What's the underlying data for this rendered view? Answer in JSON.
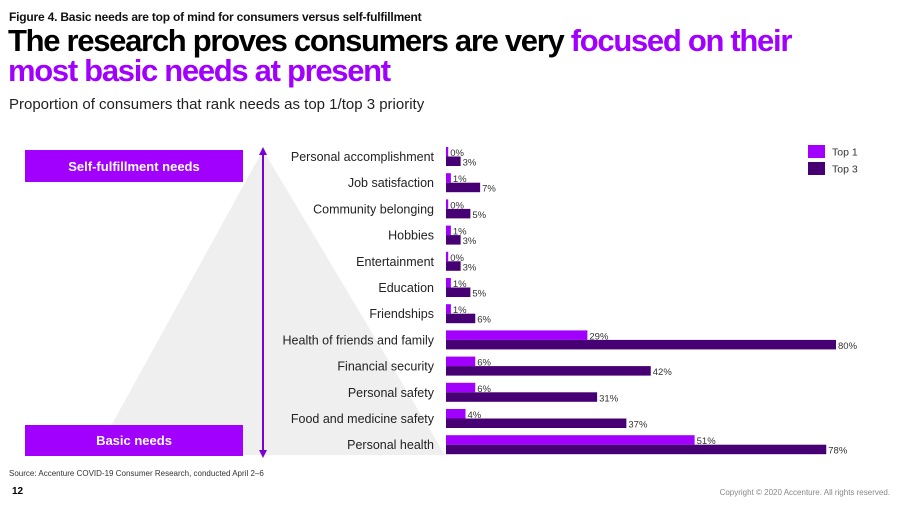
{
  "figure_label": "Figure 4. Basic needs are top of mind for consumers versus self-fulfillment",
  "headline": {
    "part1": "The research proves consumers are very ",
    "part2_highlight": "focused on their",
    "line2_highlight": "most basic needs at present"
  },
  "subtitle": "Proportion of consumers that rank needs as top 1/top 3 priority",
  "pyramid": {
    "top_label": "Self-fulfillment needs",
    "bottom_label": "Basic needs"
  },
  "colors": {
    "top1": "#a100ff",
    "top3": "#460073",
    "pyramid_fill": "#efefef",
    "arrow": "#7b00d4"
  },
  "chart_data": {
    "type": "bar",
    "orientation": "horizontal",
    "title": "Proportion of consumers that rank needs as top 1/top 3 priority",
    "categories": [
      "Personal accomplishment",
      "Job satisfaction",
      "Community belonging",
      "Hobbies",
      "Entertainment",
      "Education",
      "Friendships",
      "Health of friends and family",
      "Financial security",
      "Personal safety",
      "Food and medicine safety",
      "Personal health"
    ],
    "series": [
      {
        "name": "Top 1",
        "values": [
          0,
          1,
          0,
          1,
          0,
          1,
          1,
          29,
          6,
          6,
          4,
          51
        ]
      },
      {
        "name": "Top 3",
        "values": [
          3,
          7,
          5,
          3,
          3,
          5,
          6,
          80,
          42,
          31,
          37,
          78
        ]
      }
    ],
    "value_suffix": "%",
    "xlim": [
      0,
      100
    ],
    "grid": false,
    "legend": "top-right",
    "xlabel": "",
    "ylabel": ""
  },
  "footer": {
    "source": "Source: Accenture COVID-19 Consumer Research, conducted April 2–6",
    "page_number": "12",
    "copyright": "Copyright © 2020 Accenture. All rights reserved."
  }
}
